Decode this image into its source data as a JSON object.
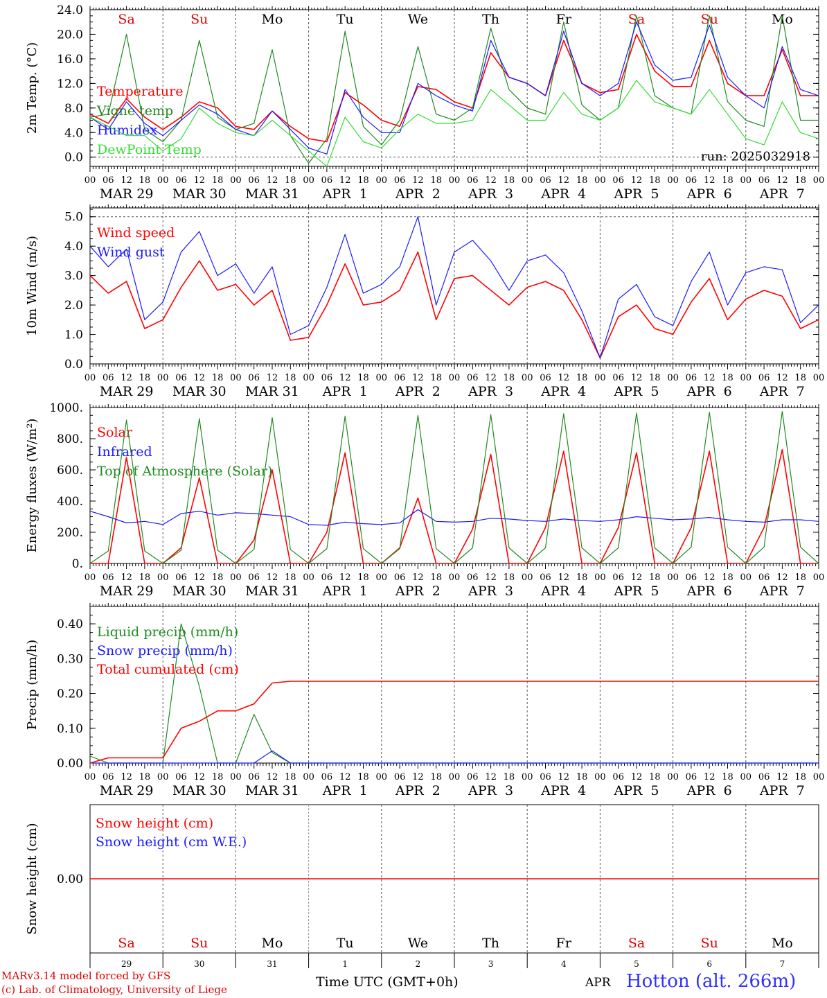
{
  "page": {
    "credit_line1": "MARv3.14 model forced by GFS",
    "credit_line2": "(c) Lab. of Climatology, University of Liege",
    "time_label": "Time UTC (GMT+0h)",
    "bottom_month": "APR",
    "station": "Hotton (alt. 266m)"
  },
  "colors": {
    "red": "#ff0000",
    "blue": "#1a1aff",
    "dark_green": "#1f8a1f",
    "light_green": "#33dd33",
    "weekend": "#e00000",
    "weekday": "#000000"
  },
  "days": {
    "weekday_names": [
      "Sa",
      "Su",
      "Mo",
      "Tu",
      "We",
      "Th",
      "Fr",
      "Sa",
      "Su",
      "Mo"
    ],
    "weekend_flags": [
      true,
      true,
      false,
      false,
      false,
      false,
      false,
      true,
      true,
      false
    ],
    "date_labels": [
      "MAR 29",
      "MAR 30",
      "MAR 31",
      "APR  1",
      "APR  2",
      "APR  3",
      "APR  4",
      "APR  5",
      "APR  6",
      "APR  7"
    ],
    "day_numbers": [
      "29",
      "30",
      "31",
      "1",
      "2",
      "3",
      "4",
      "5",
      "6",
      "7"
    ],
    "hour_labels": [
      "00",
      "06",
      "12",
      "18"
    ],
    "final_hour_label": "00"
  },
  "chart_data": [
    {
      "id": "temp",
      "type": "line",
      "ylabel": "2m Temp. (°C)",
      "ylim": [
        -1.5,
        24.0
      ],
      "yticks": [
        0.0,
        4.0,
        8.0,
        12.0,
        16.0,
        20.0,
        24.0
      ],
      "ytick_labels": [
        "0.0",
        "4.0",
        "8.0",
        "12.0",
        "16.0",
        "20.0",
        "24.0"
      ],
      "dashed_h": [
        0.0
      ],
      "run_label": "run: 2025032918",
      "x_unit": "hours since 00 UTC Mar 29, one point per 6 h",
      "series": [
        {
          "name": "Temperature",
          "color": "red",
          "values": [
            7.0,
            5.5,
            9.5,
            6.5,
            4.5,
            6.5,
            9.0,
            8.0,
            5.0,
            4.5,
            7.5,
            5.0,
            3.0,
            2.5,
            10.5,
            8.5,
            6.0,
            5.0,
            11.5,
            11.0,
            9.0,
            8.0,
            17.0,
            13.0,
            12.0,
            10.0,
            19.0,
            12.0,
            10.5,
            11.0,
            20.0,
            14.0,
            11.5,
            11.5,
            19.0,
            12.0,
            10.0,
            10.0,
            17.5,
            10.0,
            10.0
          ]
        },
        {
          "name": "Vigne temp",
          "color": "dark_green",
          "values": [
            6.5,
            7.0,
            20.0,
            4.5,
            2.5,
            6.0,
            19.0,
            6.5,
            4.5,
            5.5,
            17.5,
            3.5,
            -1.0,
            3.0,
            20.5,
            5.0,
            2.0,
            6.0,
            18.0,
            7.0,
            6.0,
            8.0,
            21.0,
            11.0,
            8.0,
            7.0,
            22.0,
            8.5,
            6.0,
            8.0,
            23.0,
            10.0,
            8.0,
            7.0,
            23.0,
            9.0,
            6.0,
            5.0,
            23.0,
            6.0,
            6.0
          ]
        },
        {
          "name": "Humidex",
          "color": "blue",
          "values": [
            6.5,
            4.5,
            9.0,
            5.5,
            3.5,
            6.0,
            8.5,
            7.0,
            4.5,
            3.5,
            7.5,
            4.5,
            1.5,
            0.5,
            11.0,
            6.5,
            4.0,
            4.0,
            12.0,
            10.0,
            8.5,
            7.5,
            19.0,
            13.0,
            12.0,
            10.0,
            20.5,
            12.0,
            10.0,
            12.0,
            22.0,
            15.0,
            12.5,
            13.0,
            21.5,
            13.0,
            10.0,
            8.0,
            18.0,
            11.0,
            10.0
          ]
        },
        {
          "name": "DewPoint Temp",
          "color": "light_green",
          "values": [
            6.5,
            5.0,
            3.5,
            3.5,
            1.0,
            3.0,
            8.0,
            5.5,
            4.0,
            3.5,
            6.0,
            3.5,
            1.0,
            -1.5,
            6.5,
            2.5,
            1.5,
            4.5,
            7.0,
            5.5,
            5.5,
            6.0,
            11.0,
            8.5,
            6.0,
            6.0,
            10.5,
            7.0,
            6.0,
            8.0,
            12.5,
            9.0,
            8.0,
            7.0,
            11.0,
            7.0,
            3.0,
            2.0,
            9.0,
            4.0,
            3.0
          ]
        }
      ]
    },
    {
      "id": "wind",
      "type": "line",
      "ylabel": "10m Wind (m/s)",
      "ylim": [
        0.0,
        5.3
      ],
      "yticks": [
        0.0,
        1.0,
        2.0,
        3.0,
        4.0,
        5.0
      ],
      "ytick_labels": [
        "0.0",
        "1.0",
        "2.0",
        "3.0",
        "4.0",
        "5.0"
      ],
      "dashed_h": [
        5.0
      ],
      "series": [
        {
          "name": "Wind speed",
          "color": "red",
          "values": [
            3.0,
            2.4,
            2.8,
            1.2,
            1.5,
            2.6,
            3.5,
            2.5,
            2.7,
            2.0,
            2.5,
            0.8,
            0.9,
            2.0,
            3.4,
            2.0,
            2.1,
            2.5,
            3.8,
            1.5,
            2.9,
            3.0,
            2.5,
            2.0,
            2.6,
            2.8,
            2.5,
            1.5,
            0.2,
            1.6,
            2.0,
            1.2,
            1.0,
            2.1,
            2.9,
            1.5,
            2.2,
            2.5,
            2.3,
            1.2,
            1.5
          ]
        },
        {
          "name": "Wind gust",
          "color": "blue",
          "values": [
            4.0,
            3.3,
            3.9,
            1.5,
            2.1,
            3.8,
            4.5,
            3.0,
            3.4,
            2.4,
            3.3,
            1.0,
            1.3,
            2.6,
            4.4,
            2.4,
            2.7,
            3.3,
            5.0,
            2.0,
            3.8,
            4.2,
            3.5,
            2.5,
            3.5,
            3.7,
            3.1,
            1.8,
            0.2,
            2.2,
            2.7,
            1.6,
            1.3,
            2.8,
            3.8,
            2.0,
            3.1,
            3.3,
            3.2,
            1.4,
            2.0
          ]
        }
      ]
    },
    {
      "id": "energy",
      "type": "line",
      "ylabel": "Energy fluxes (W/m²)",
      "ylim": [
        0,
        1000
      ],
      "yticks": [
        0,
        200,
        400,
        600,
        800,
        1000
      ],
      "ytick_labels": [
        "0.",
        "200.",
        "400.",
        "600.",
        "800.",
        "1000."
      ],
      "dashed_h": [],
      "series": [
        {
          "name": "Solar",
          "color": "red",
          "values": [
            0,
            0,
            680,
            0,
            0,
            100,
            550,
            0,
            0,
            150,
            600,
            0,
            0,
            200,
            710,
            0,
            0,
            100,
            420,
            0,
            0,
            220,
            700,
            0,
            0,
            230,
            720,
            0,
            0,
            230,
            710,
            0,
            0,
            230,
            720,
            0,
            0,
            230,
            730,
            0,
            0
          ]
        },
        {
          "name": "Infrared",
          "color": "blue",
          "values": [
            335,
            300,
            260,
            270,
            250,
            320,
            335,
            310,
            325,
            320,
            310,
            300,
            250,
            245,
            265,
            255,
            250,
            260,
            345,
            270,
            265,
            270,
            290,
            285,
            275,
            270,
            285,
            275,
            270,
            280,
            300,
            290,
            280,
            285,
            295,
            280,
            270,
            265,
            280,
            280,
            270
          ]
        },
        {
          "name": "Top of Atmosphere (Solar)",
          "color": "dark_green",
          "values": [
            0,
            80,
            920,
            80,
            0,
            85,
            930,
            85,
            0,
            90,
            935,
            90,
            0,
            95,
            945,
            95,
            0,
            95,
            950,
            95,
            0,
            100,
            955,
            100,
            0,
            100,
            960,
            100,
            0,
            100,
            965,
            100,
            0,
            105,
            970,
            105,
            0,
            105,
            975,
            105,
            0
          ]
        }
      ]
    },
    {
      "id": "precip",
      "type": "line",
      "ylabel": "Precip (mm/h)",
      "ylim": [
        0.0,
        0.45
      ],
      "yticks": [
        0.0,
        0.1,
        0.2,
        0.3,
        0.4
      ],
      "ytick_labels": [
        "0.00",
        "0.10",
        "0.20",
        "0.30",
        "0.40"
      ],
      "dashed_h": [],
      "series": [
        {
          "name": "Liquid precip (mm/h)",
          "color": "dark_green",
          "values": [
            0.02,
            0.0,
            0.0,
            0.0,
            0.0,
            0.4,
            0.22,
            0.0,
            0.0,
            0.14,
            0.03,
            0.0,
            0.0,
            0.0,
            0.0,
            0.0,
            0.0,
            0.0,
            0.0,
            0.0,
            0.0,
            0.0,
            0.0,
            0.0,
            0.0,
            0.0,
            0.0,
            0.0,
            0.0,
            0.0,
            0.0,
            0.0,
            0.0,
            0.0,
            0.0,
            0.0,
            0.0,
            0.0,
            0.0,
            0.0,
            0.0
          ]
        },
        {
          "name": "Snow precip (mm/h)",
          "color": "blue",
          "values": [
            0.0,
            0.0,
            0.0,
            0.0,
            0.0,
            0.0,
            0.0,
            0.0,
            0.0,
            0.0,
            0.035,
            0.0,
            0.0,
            0.0,
            0.0,
            0.0,
            0.0,
            0.0,
            0.0,
            0.0,
            0.0,
            0.0,
            0.0,
            0.0,
            0.0,
            0.0,
            0.0,
            0.0,
            0.0,
            0.0,
            0.0,
            0.0,
            0.0,
            0.0,
            0.0,
            0.0,
            0.0,
            0.0,
            0.0,
            0.0,
            0.0
          ]
        },
        {
          "name": "Total cumulated (cm)",
          "color": "red",
          "values": [
            0.0,
            0.015,
            0.015,
            0.015,
            0.015,
            0.1,
            0.12,
            0.15,
            0.15,
            0.17,
            0.23,
            0.235,
            0.235,
            0.235,
            0.235,
            0.235,
            0.235,
            0.235,
            0.235,
            0.235,
            0.235,
            0.235,
            0.235,
            0.235,
            0.235,
            0.235,
            0.235,
            0.235,
            0.235,
            0.235,
            0.235,
            0.235,
            0.235,
            0.235,
            0.235,
            0.235,
            0.235,
            0.235,
            0.235,
            0.235,
            0.235
          ]
        }
      ]
    },
    {
      "id": "snow",
      "type": "line",
      "ylabel": "Snow height (cm)",
      "ylim": [
        -1.0,
        1.0
      ],
      "yticks": [
        0.0
      ],
      "ytick_labels": [
        "0.00"
      ],
      "dashed_h": [],
      "series": [
        {
          "name": "Snow height (cm)",
          "color": "red",
          "values": [
            0,
            0,
            0,
            0,
            0,
            0,
            0,
            0,
            0,
            0,
            0,
            0,
            0,
            0,
            0,
            0,
            0,
            0,
            0,
            0,
            0,
            0,
            0,
            0,
            0,
            0,
            0,
            0,
            0,
            0,
            0,
            0,
            0,
            0,
            0,
            0,
            0,
            0,
            0,
            0,
            0
          ]
        },
        {
          "name": "Snow height (cm W.E.)",
          "color": "blue",
          "values": []
        }
      ]
    }
  ]
}
